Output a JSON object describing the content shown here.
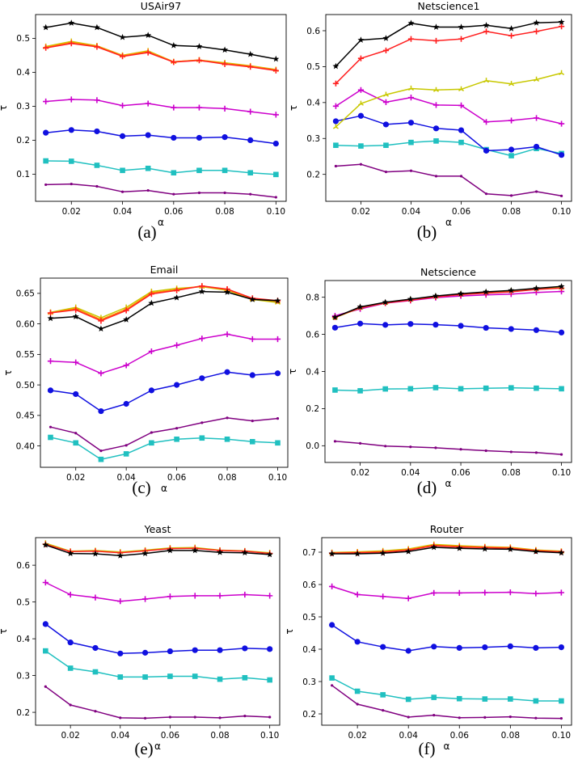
{
  "figure": {
    "captions": [
      "(a)",
      "(b)",
      "(c)",
      "(d)",
      "(e)",
      "(f)"
    ]
  },
  "series_styles": [
    {
      "name": "black series",
      "color": "#000000",
      "marker": "star"
    },
    {
      "name": "red series",
      "color": "#ff2020",
      "marker": "plus"
    },
    {
      "name": "olive series",
      "color": "#c8c800",
      "marker": "tri"
    },
    {
      "name": "orange series",
      "color": "#ff8c00",
      "marker": "tri"
    },
    {
      "name": "magenta series",
      "color": "#cc00cc",
      "marker": "plus"
    },
    {
      "name": "blue series",
      "color": "#1010e0",
      "marker": "circle"
    },
    {
      "name": "cyan series",
      "color": "#20c0c0",
      "marker": "square"
    },
    {
      "name": "purple series",
      "color": "#800080",
      "marker": "dot"
    }
  ],
  "chart_data": [
    {
      "type": "line",
      "title": "USAir97",
      "xlabel": "α",
      "ylabel": "τ",
      "xlim": [
        0.006,
        0.104
      ],
      "ylim": [
        0.02,
        0.57
      ],
      "x": [
        0.01,
        0.02,
        0.03,
        0.04,
        0.05,
        0.06,
        0.07,
        0.08,
        0.09,
        0.1
      ],
      "xticks": [
        0.02,
        0.04,
        0.06,
        0.08,
        0.1
      ],
      "xtick_labels": [
        "0.02",
        "0.04",
        "0.06",
        "0.08",
        "0.10"
      ],
      "yticks": [
        0.1,
        0.2,
        0.3,
        0.4,
        0.5
      ],
      "ytick_labels": [
        "0.1",
        "0.2",
        "0.3",
        "0.4",
        "0.5"
      ],
      "series": [
        {
          "name": "black series",
          "values": [
            0.532,
            0.545,
            0.532,
            0.503,
            0.509,
            0.479,
            0.476,
            0.466,
            0.453,
            0.439
          ]
        },
        {
          "name": "olive series",
          "values": [
            0.476,
            0.491,
            0.478,
            0.45,
            0.463,
            0.431,
            0.436,
            0.428,
            0.419,
            0.408
          ]
        },
        {
          "name": "orange series",
          "values": [
            0.474,
            0.488,
            0.477,
            0.449,
            0.461,
            0.431,
            0.436,
            0.426,
            0.418,
            0.407
          ]
        },
        {
          "name": "red series",
          "values": [
            0.472,
            0.485,
            0.475,
            0.447,
            0.458,
            0.43,
            0.435,
            0.424,
            0.416,
            0.405
          ]
        },
        {
          "name": "magenta series",
          "values": [
            0.314,
            0.32,
            0.318,
            0.302,
            0.308,
            0.296,
            0.296,
            0.293,
            0.284,
            0.275
          ]
        },
        {
          "name": "blue series",
          "values": [
            0.222,
            0.23,
            0.226,
            0.212,
            0.215,
            0.207,
            0.207,
            0.209,
            0.2,
            0.19
          ]
        },
        {
          "name": "cyan series",
          "values": [
            0.139,
            0.138,
            0.126,
            0.111,
            0.117,
            0.104,
            0.111,
            0.111,
            0.104,
            0.099
          ]
        },
        {
          "name": "purple series",
          "values": [
            0.069,
            0.071,
            0.064,
            0.048,
            0.052,
            0.041,
            0.045,
            0.045,
            0.041,
            0.032
          ]
        }
      ]
    },
    {
      "type": "line",
      "title": "Netscience1",
      "xlabel": "α",
      "ylabel": "τ",
      "xlim": [
        0.006,
        0.104
      ],
      "ylim": [
        0.125,
        0.645
      ],
      "x": [
        0.01,
        0.02,
        0.03,
        0.04,
        0.05,
        0.06,
        0.07,
        0.08,
        0.09,
        0.1
      ],
      "xticks": [
        0.02,
        0.04,
        0.06,
        0.08,
        0.1
      ],
      "xtick_labels": [
        "0.02",
        "0.04",
        "0.06",
        "0.08",
        "0.10"
      ],
      "yticks": [
        0.2,
        0.3,
        0.4,
        0.5,
        0.6
      ],
      "ytick_labels": [
        "0.2",
        "0.3",
        "0.4",
        "0.5",
        "0.6"
      ],
      "series": [
        {
          "name": "black series",
          "values": [
            0.501,
            0.574,
            0.579,
            0.621,
            0.61,
            0.61,
            0.615,
            0.606,
            0.622,
            0.624
          ]
        },
        {
          "name": "red series",
          "values": [
            0.453,
            0.523,
            0.545,
            0.577,
            0.572,
            0.577,
            0.598,
            0.586,
            0.598,
            0.612
          ]
        },
        {
          "name": "olive series",
          "values": [
            0.332,
            0.397,
            0.422,
            0.439,
            0.435,
            0.437,
            0.461,
            0.452,
            0.464,
            0.482
          ]
        },
        {
          "name": "magenta series",
          "values": [
            0.39,
            0.435,
            0.401,
            0.414,
            0.393,
            0.392,
            0.346,
            0.35,
            0.357,
            0.341
          ]
        },
        {
          "name": "blue series",
          "values": [
            0.348,
            0.363,
            0.339,
            0.344,
            0.328,
            0.323,
            0.266,
            0.269,
            0.277,
            0.254
          ]
        },
        {
          "name": "cyan series",
          "values": [
            0.281,
            0.279,
            0.281,
            0.289,
            0.293,
            0.289,
            0.269,
            0.252,
            0.272,
            0.258
          ]
        },
        {
          "name": "purple series",
          "values": [
            0.223,
            0.228,
            0.207,
            0.21,
            0.195,
            0.195,
            0.146,
            0.141,
            0.152,
            0.14
          ]
        }
      ]
    },
    {
      "type": "line",
      "title": "Email",
      "xlabel": "α",
      "ylabel": "τ",
      "xlim": [
        0.006,
        0.104
      ],
      "ylim": [
        0.365,
        0.675
      ],
      "x": [
        0.01,
        0.02,
        0.03,
        0.04,
        0.05,
        0.06,
        0.07,
        0.08,
        0.09,
        0.1
      ],
      "xticks": [
        0.02,
        0.04,
        0.06,
        0.08,
        0.1
      ],
      "xtick_labels": [
        "0.02",
        "0.04",
        "0.06",
        "0.08",
        "0.10"
      ],
      "yticks": [
        0.4,
        0.45,
        0.5,
        0.55,
        0.6,
        0.65
      ],
      "ytick_labels": [
        "0.40",
        "0.45",
        "0.50",
        "0.55",
        "0.60",
        "0.65"
      ],
      "series": [
        {
          "name": "olive series",
          "values": [
            0.619,
            0.627,
            0.61,
            0.627,
            0.653,
            0.658,
            0.661,
            0.655,
            0.64,
            0.635
          ]
        },
        {
          "name": "orange series",
          "values": [
            0.618,
            0.625,
            0.607,
            0.624,
            0.651,
            0.656,
            0.662,
            0.656,
            0.641,
            0.637
          ]
        },
        {
          "name": "red series",
          "values": [
            0.618,
            0.623,
            0.605,
            0.622,
            0.649,
            0.655,
            0.662,
            0.657,
            0.642,
            0.638
          ]
        },
        {
          "name": "black series",
          "values": [
            0.609,
            0.612,
            0.592,
            0.607,
            0.634,
            0.643,
            0.653,
            0.652,
            0.64,
            0.638
          ]
        },
        {
          "name": "magenta series",
          "values": [
            0.539,
            0.537,
            0.519,
            0.532,
            0.555,
            0.565,
            0.576,
            0.583,
            0.575,
            0.575
          ]
        },
        {
          "name": "blue series",
          "values": [
            0.491,
            0.485,
            0.457,
            0.469,
            0.491,
            0.5,
            0.511,
            0.521,
            0.516,
            0.519
          ]
        },
        {
          "name": "purple series",
          "values": [
            0.431,
            0.421,
            0.392,
            0.401,
            0.422,
            0.429,
            0.438,
            0.446,
            0.441,
            0.445
          ]
        },
        {
          "name": "cyan series",
          "values": [
            0.414,
            0.405,
            0.378,
            0.387,
            0.405,
            0.411,
            0.413,
            0.411,
            0.407,
            0.405
          ]
        }
      ]
    },
    {
      "type": "line",
      "title": "Netscience",
      "xlabel": "α",
      "ylabel": "τ",
      "xlim": [
        0.006,
        0.104
      ],
      "ylim": [
        -0.09,
        0.89
      ],
      "x": [
        0.01,
        0.02,
        0.03,
        0.04,
        0.05,
        0.06,
        0.07,
        0.08,
        0.09,
        0.1
      ],
      "xticks": [
        0.02,
        0.04,
        0.06,
        0.08,
        0.1
      ],
      "xtick_labels": [
        "0.02",
        "0.04",
        "0.06",
        "0.08",
        "0.10"
      ],
      "yticks": [
        0.0,
        0.2,
        0.4,
        0.6,
        0.8
      ],
      "ytick_labels": [
        "0.0",
        "0.2",
        "0.4",
        "0.6",
        "0.8"
      ],
      "series": [
        {
          "name": "olive series",
          "values": [
            0.69,
            0.743,
            0.77,
            0.788,
            0.804,
            0.817,
            0.826,
            0.835,
            0.846,
            0.852
          ]
        },
        {
          "name": "red series",
          "values": [
            0.692,
            0.744,
            0.769,
            0.785,
            0.802,
            0.814,
            0.822,
            0.829,
            0.842,
            0.849
          ]
        },
        {
          "name": "black series",
          "values": [
            0.692,
            0.748,
            0.773,
            0.79,
            0.807,
            0.819,
            0.829,
            0.837,
            0.848,
            0.858
          ]
        },
        {
          "name": "magenta series",
          "values": [
            0.7,
            0.737,
            0.768,
            0.782,
            0.798,
            0.807,
            0.813,
            0.817,
            0.826,
            0.831
          ]
        },
        {
          "name": "blue series",
          "values": [
            0.636,
            0.658,
            0.651,
            0.656,
            0.652,
            0.646,
            0.635,
            0.629,
            0.623,
            0.61
          ]
        },
        {
          "name": "cyan series",
          "values": [
            0.3,
            0.296,
            0.306,
            0.307,
            0.313,
            0.307,
            0.31,
            0.312,
            0.31,
            0.307
          ]
        },
        {
          "name": "purple series",
          "values": [
            0.024,
            0.013,
            -0.002,
            -0.006,
            -0.011,
            -0.019,
            -0.027,
            -0.033,
            -0.037,
            -0.047
          ]
        }
      ]
    },
    {
      "type": "line",
      "title": "Yeast",
      "xlabel": "α",
      "ylabel": "τ",
      "xlim": [
        0.006,
        0.104
      ],
      "ylim": [
        0.165,
        0.675
      ],
      "x": [
        0.01,
        0.02,
        0.03,
        0.04,
        0.05,
        0.06,
        0.07,
        0.08,
        0.09,
        0.1
      ],
      "xticks": [
        0.02,
        0.04,
        0.06,
        0.08,
        0.1
      ],
      "xtick_labels": [
        "0.02",
        "0.04",
        "0.06",
        "0.08",
        "0.10"
      ],
      "yticks": [
        0.2,
        0.3,
        0.4,
        0.5,
        0.6
      ],
      "ytick_labels": [
        "0.2",
        "0.3",
        "0.4",
        "0.5",
        "0.6"
      ],
      "series": [
        {
          "name": "olive series",
          "values": [
            0.66,
            0.638,
            0.64,
            0.636,
            0.641,
            0.647,
            0.648,
            0.641,
            0.639,
            0.634
          ]
        },
        {
          "name": "red series",
          "values": [
            0.657,
            0.637,
            0.638,
            0.634,
            0.639,
            0.645,
            0.646,
            0.64,
            0.638,
            0.632
          ]
        },
        {
          "name": "black series",
          "values": [
            0.655,
            0.632,
            0.631,
            0.626,
            0.632,
            0.64,
            0.64,
            0.635,
            0.634,
            0.629
          ]
        },
        {
          "name": "magenta series",
          "values": [
            0.553,
            0.52,
            0.512,
            0.502,
            0.508,
            0.515,
            0.517,
            0.517,
            0.52,
            0.517
          ]
        },
        {
          "name": "blue series",
          "values": [
            0.44,
            0.39,
            0.375,
            0.36,
            0.362,
            0.366,
            0.369,
            0.369,
            0.374,
            0.372
          ]
        },
        {
          "name": "cyan series",
          "values": [
            0.367,
            0.32,
            0.31,
            0.296,
            0.296,
            0.298,
            0.298,
            0.29,
            0.294,
            0.288
          ]
        },
        {
          "name": "purple series",
          "values": [
            0.27,
            0.22,
            0.203,
            0.185,
            0.184,
            0.187,
            0.187,
            0.185,
            0.19,
            0.187
          ]
        }
      ]
    },
    {
      "type": "line",
      "title": "Router",
      "xlabel": "α",
      "ylabel": "τ",
      "xlim": [
        0.006,
        0.104
      ],
      "ylim": [
        0.165,
        0.745
      ],
      "x": [
        0.01,
        0.02,
        0.03,
        0.04,
        0.05,
        0.06,
        0.07,
        0.08,
        0.09,
        0.1
      ],
      "xticks": [
        0.02,
        0.04,
        0.06,
        0.08,
        0.1
      ],
      "xtick_labels": [
        "0.02",
        "0.04",
        "0.06",
        "0.08",
        "0.10"
      ],
      "yticks": [
        0.2,
        0.3,
        0.4,
        0.5,
        0.6,
        0.7
      ],
      "ytick_labels": [
        "0.2",
        "0.3",
        "0.4",
        "0.5",
        "0.6",
        "0.7"
      ],
      "series": [
        {
          "name": "olive series",
          "values": [
            0.699,
            0.701,
            0.704,
            0.71,
            0.724,
            0.72,
            0.717,
            0.715,
            0.707,
            0.703
          ]
        },
        {
          "name": "orange series",
          "values": [
            0.698,
            0.7,
            0.702,
            0.708,
            0.722,
            0.718,
            0.716,
            0.714,
            0.706,
            0.702
          ]
        },
        {
          "name": "red series",
          "values": [
            0.697,
            0.698,
            0.7,
            0.706,
            0.72,
            0.716,
            0.714,
            0.712,
            0.704,
            0.701
          ]
        },
        {
          "name": "black series",
          "values": [
            0.695,
            0.695,
            0.697,
            0.702,
            0.715,
            0.712,
            0.71,
            0.709,
            0.702,
            0.698
          ]
        },
        {
          "name": "magenta series",
          "values": [
            0.594,
            0.569,
            0.563,
            0.557,
            0.574,
            0.574,
            0.575,
            0.576,
            0.572,
            0.575
          ]
        },
        {
          "name": "blue series",
          "values": [
            0.475,
            0.423,
            0.407,
            0.395,
            0.408,
            0.404,
            0.406,
            0.409,
            0.404,
            0.406
          ]
        },
        {
          "name": "cyan series",
          "values": [
            0.311,
            0.27,
            0.259,
            0.245,
            0.251,
            0.247,
            0.246,
            0.246,
            0.24,
            0.24
          ]
        },
        {
          "name": "purple series",
          "values": [
            0.288,
            0.23,
            0.211,
            0.19,
            0.196,
            0.188,
            0.189,
            0.191,
            0.187,
            0.186
          ]
        }
      ]
    }
  ]
}
